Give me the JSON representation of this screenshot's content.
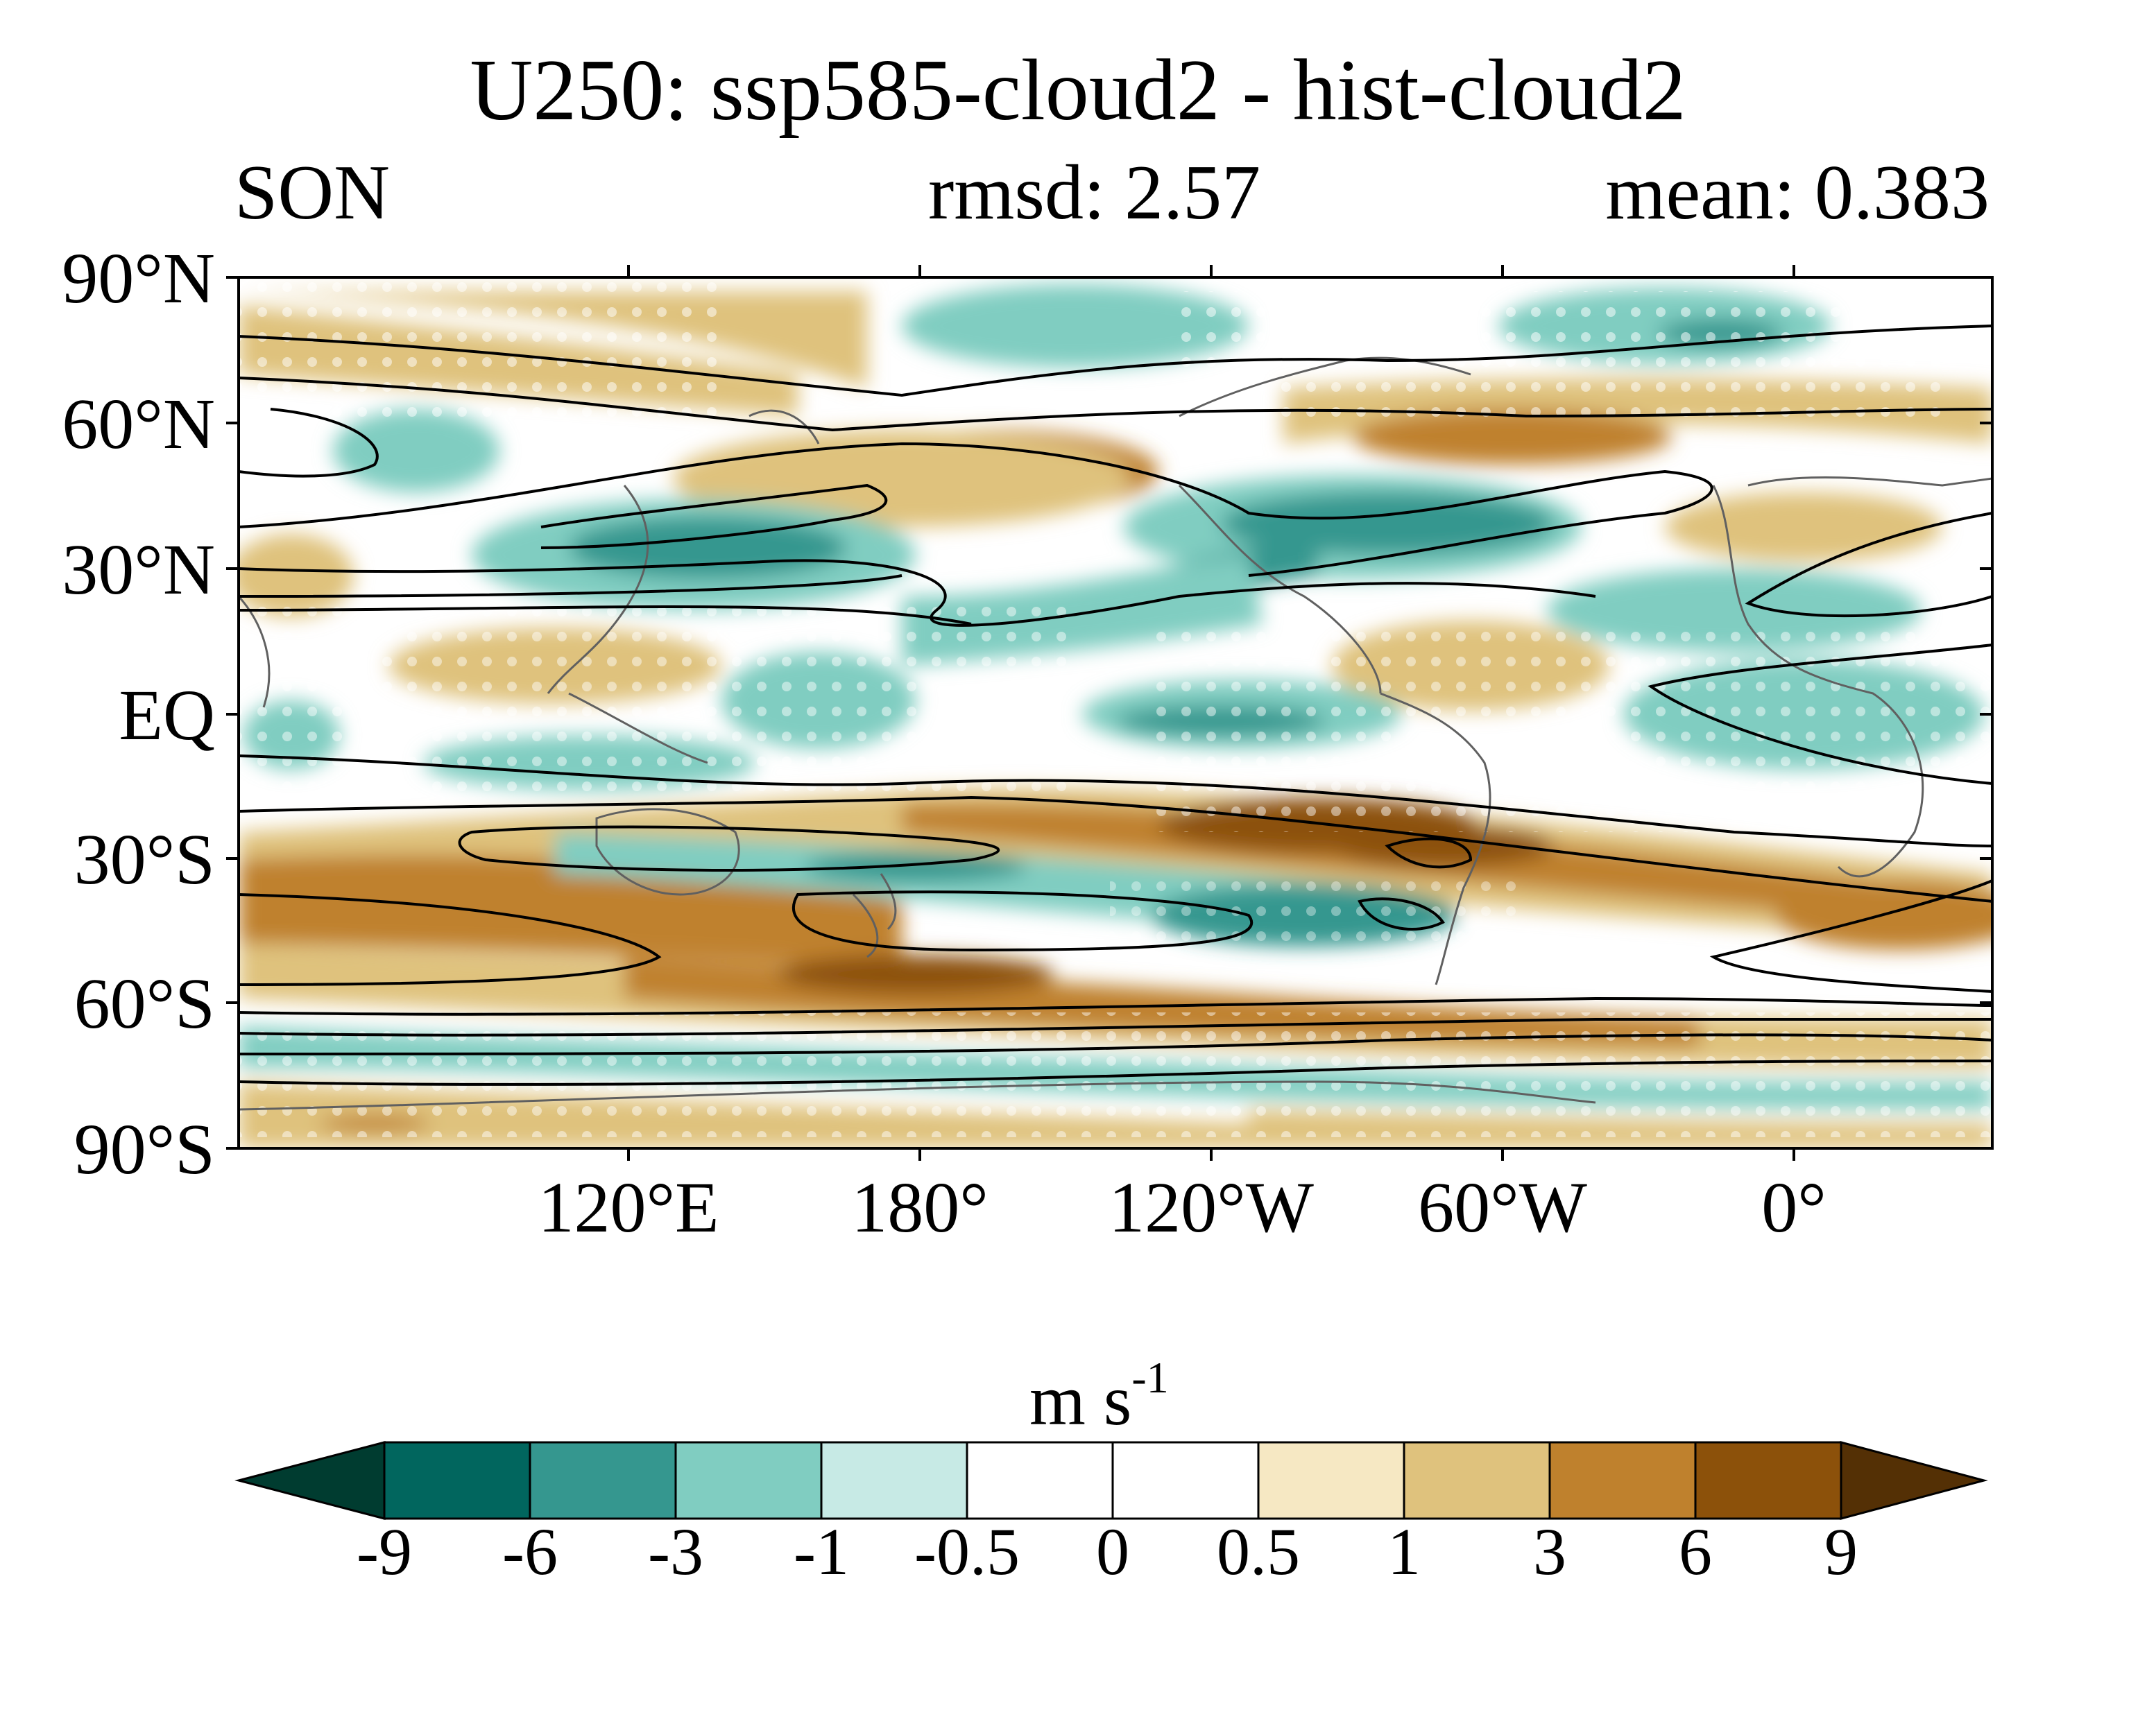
{
  "title": "U250: ssp585-cloud2 - hist-cloud2",
  "subtitle": {
    "season": "SON",
    "rmsd": "rmsd: 2.57",
    "mean": "mean: 0.383"
  },
  "lat_labels": [
    "90°N",
    "60°N",
    "30°N",
    "EQ",
    "30°S",
    "60°S",
    "90°S"
  ],
  "lon_labels": [
    "120°E",
    "180°",
    "120°W",
    "60°W",
    "0°"
  ],
  "colorbar": {
    "units_base": "m s",
    "units_exp": "-1",
    "tick_labels": [
      "-9",
      "-6",
      "-3",
      "-1",
      "-0.5",
      "0",
      "0.5",
      "1",
      "3",
      "6",
      "9"
    ],
    "colors": [
      "#003c30",
      "#01665e",
      "#35978f",
      "#80cdc1",
      "#c7eae5",
      "#ffffff",
      "#ffffff",
      "#f6e8c3",
      "#dfc27d",
      "#bf812d",
      "#8c510a",
      "#543005"
    ]
  },
  "map": {
    "projection": "cylindrical equidistant",
    "shading": "U250 difference (ssp585-cloud2 minus hist-cloud2)",
    "contours": "climatological U250",
    "stippling": "white dots",
    "coastlines": "gray"
  }
}
